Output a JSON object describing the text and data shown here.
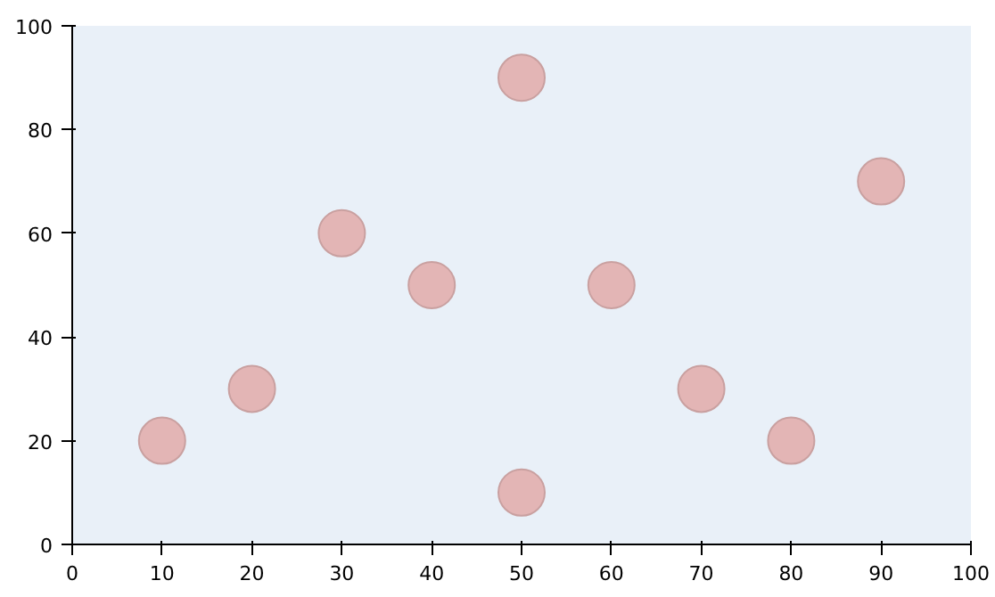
{
  "chart_data": {
    "type": "scatter",
    "x": [
      10,
      20,
      30,
      40,
      50,
      50,
      60,
      70,
      80,
      90
    ],
    "values": [
      20,
      30,
      60,
      50,
      90,
      10,
      50,
      30,
      20,
      70
    ],
    "color": "#e3b5b5",
    "marker": "circle",
    "xlim": [
      0,
      100
    ],
    "ylim": [
      0,
      100
    ],
    "xticks": [
      0,
      10,
      20,
      30,
      40,
      50,
      60,
      70,
      80,
      90,
      100
    ],
    "yticks": [
      0,
      20,
      40,
      60,
      80,
      100
    ],
    "grid": false
  }
}
